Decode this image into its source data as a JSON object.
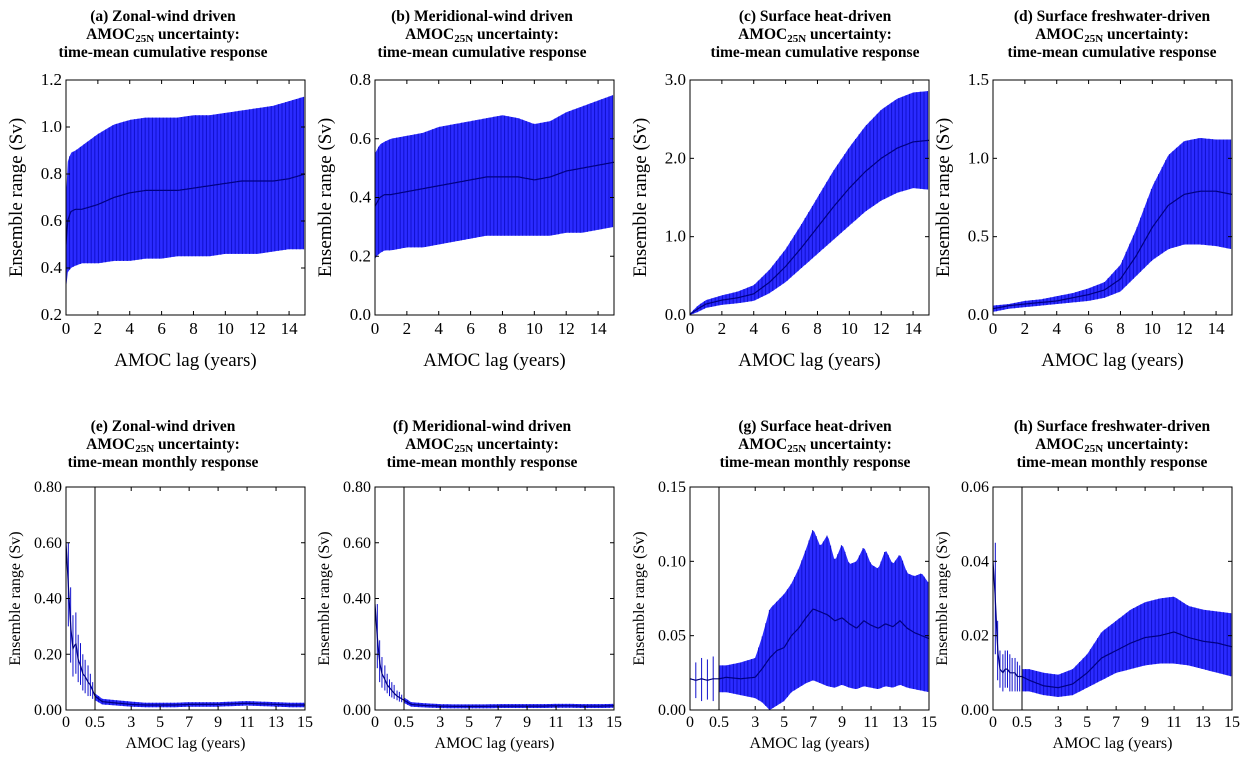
{
  "colors": {
    "band": "#2b2bff",
    "bar": "#1010cc",
    "mean": "#000080",
    "axes": "#000000"
  },
  "chart_data": [
    {
      "type": "area",
      "id": "a",
      "title": [
        "(a)  Zonal-wind driven",
        "AMOC25N uncertainty:",
        "time-mean cumulative response"
      ],
      "xlabel": "AMOC lag (years)",
      "ylabel": "Ensemble range (Sv)",
      "xlim": [
        0,
        15
      ],
      "ylim": [
        0.2,
        1.2
      ],
      "xticks": [
        0,
        2,
        4,
        6,
        8,
        10,
        12,
        14
      ],
      "xticklabels": [
        "0",
        "2",
        "4",
        "6",
        "8",
        "10",
        "12",
        "14"
      ],
      "yticks": [
        0.2,
        0.4,
        0.6,
        0.8,
        1.0,
        1.2
      ],
      "yticklabels": [
        "0.2",
        "0.4",
        "0.6",
        "0.8",
        "1.0",
        "1.2"
      ],
      "x": [
        0,
        0.1,
        0.3,
        0.6,
        1,
        2,
        3,
        4,
        5,
        6,
        7,
        8,
        9,
        10,
        11,
        12,
        13,
        14,
        15
      ],
      "mean": [
        0.5,
        0.6,
        0.64,
        0.65,
        0.65,
        0.67,
        0.7,
        0.72,
        0.73,
        0.73,
        0.73,
        0.74,
        0.75,
        0.76,
        0.77,
        0.77,
        0.77,
        0.78,
        0.8
      ],
      "upper": [
        0.7,
        0.85,
        0.89,
        0.9,
        0.92,
        0.97,
        1.01,
        1.03,
        1.04,
        1.04,
        1.04,
        1.05,
        1.05,
        1.06,
        1.07,
        1.08,
        1.09,
        1.11,
        1.13
      ],
      "lower": [
        0.31,
        0.38,
        0.4,
        0.41,
        0.42,
        0.42,
        0.43,
        0.43,
        0.44,
        0.44,
        0.45,
        0.45,
        0.45,
        0.46,
        0.46,
        0.46,
        0.47,
        0.48,
        0.48
      ]
    },
    {
      "type": "area",
      "id": "b",
      "title": [
        "(b)  Meridional-wind driven",
        "AMOC25N uncertainty:",
        "time-mean cumulative response"
      ],
      "xlabel": "AMOC lag (years)",
      "ylabel": "Ensemble range (Sv)",
      "xlim": [
        0,
        15
      ],
      "ylim": [
        0.0,
        0.8
      ],
      "xticks": [
        0,
        2,
        4,
        6,
        8,
        10,
        12,
        14
      ],
      "xticklabels": [
        "0",
        "2",
        "4",
        "6",
        "8",
        "10",
        "12",
        "14"
      ],
      "yticks": [
        0.0,
        0.2,
        0.4,
        0.6,
        0.8
      ],
      "yticklabels": [
        "0.0",
        "0.2",
        "0.4",
        "0.6",
        "0.8"
      ],
      "x": [
        0,
        0.1,
        0.3,
        0.6,
        1,
        2,
        3,
        4,
        5,
        6,
        7,
        8,
        9,
        10,
        11,
        12,
        13,
        14,
        15
      ],
      "mean": [
        0.37,
        0.38,
        0.4,
        0.41,
        0.41,
        0.42,
        0.43,
        0.44,
        0.45,
        0.46,
        0.47,
        0.47,
        0.47,
        0.46,
        0.47,
        0.49,
        0.5,
        0.51,
        0.52
      ],
      "upper": [
        0.55,
        0.56,
        0.58,
        0.59,
        0.6,
        0.61,
        0.62,
        0.64,
        0.65,
        0.66,
        0.67,
        0.68,
        0.67,
        0.65,
        0.66,
        0.69,
        0.71,
        0.73,
        0.75
      ],
      "lower": [
        0.19,
        0.2,
        0.21,
        0.22,
        0.22,
        0.23,
        0.23,
        0.24,
        0.25,
        0.26,
        0.27,
        0.27,
        0.27,
        0.27,
        0.27,
        0.28,
        0.28,
        0.29,
        0.3
      ]
    },
    {
      "type": "area",
      "id": "c",
      "title": [
        "(c)  Surface heat-driven",
        "AMOC25N uncertainty:",
        "time-mean cumulative response"
      ],
      "xlabel": "AMOC lag (years)",
      "ylabel": "Ensemble range (Sv)",
      "xlim": [
        0,
        15
      ],
      "ylim": [
        0.0,
        3.0
      ],
      "xticks": [
        0,
        2,
        4,
        6,
        8,
        10,
        12,
        14
      ],
      "xticklabels": [
        "0",
        "2",
        "4",
        "6",
        "8",
        "10",
        "12",
        "14"
      ],
      "yticks": [
        0.0,
        1.0,
        2.0,
        3.0
      ],
      "yticklabels": [
        "0.0",
        "1.0",
        "2.0",
        "3.0"
      ],
      "x": [
        0,
        0.5,
        1,
        2,
        3,
        4,
        5,
        6,
        7,
        8,
        9,
        10,
        11,
        12,
        13,
        14,
        15
      ],
      "mean": [
        0.01,
        0.08,
        0.14,
        0.19,
        0.22,
        0.27,
        0.42,
        0.62,
        0.86,
        1.12,
        1.38,
        1.62,
        1.83,
        2.0,
        2.13,
        2.21,
        2.23
      ],
      "upper": [
        0.02,
        0.12,
        0.19,
        0.25,
        0.3,
        0.38,
        0.58,
        0.84,
        1.16,
        1.5,
        1.84,
        2.14,
        2.41,
        2.62,
        2.76,
        2.84,
        2.86
      ],
      "lower": [
        0.0,
        0.04,
        0.09,
        0.13,
        0.15,
        0.18,
        0.28,
        0.42,
        0.6,
        0.78,
        0.96,
        1.14,
        1.32,
        1.46,
        1.56,
        1.62,
        1.6
      ]
    },
    {
      "type": "area",
      "id": "d",
      "title": [
        "(d)  Surface freshwater-driven",
        "AMOC25N uncertainty:",
        "time-mean cumulative response"
      ],
      "xlabel": "AMOC lag (years)",
      "ylabel": "Ensemble range (Sv)",
      "xlim": [
        0,
        15
      ],
      "ylim": [
        0.0,
        1.5
      ],
      "xticks": [
        0,
        2,
        4,
        6,
        8,
        10,
        12,
        14
      ],
      "xticklabels": [
        "0",
        "2",
        "4",
        "6",
        "8",
        "10",
        "12",
        "14"
      ],
      "yticks": [
        0.0,
        0.5,
        1.0,
        1.5
      ],
      "yticklabels": [
        "0.0",
        "0.5",
        "1.0",
        "1.5"
      ],
      "x": [
        0,
        1,
        2,
        3,
        4,
        5,
        6,
        7,
        8,
        9,
        10,
        11,
        12,
        13,
        14,
        15
      ],
      "mean": [
        0.04,
        0.06,
        0.07,
        0.08,
        0.09,
        0.11,
        0.13,
        0.16,
        0.23,
        0.38,
        0.56,
        0.7,
        0.77,
        0.79,
        0.79,
        0.77
      ],
      "upper": [
        0.06,
        0.07,
        0.09,
        0.1,
        0.12,
        0.14,
        0.17,
        0.21,
        0.32,
        0.55,
        0.82,
        1.02,
        1.11,
        1.13,
        1.12,
        1.12
      ],
      "lower": [
        0.02,
        0.04,
        0.05,
        0.06,
        0.07,
        0.08,
        0.09,
        0.11,
        0.15,
        0.25,
        0.35,
        0.42,
        0.45,
        0.45,
        0.44,
        0.42
      ]
    },
    {
      "type": "area",
      "id": "e",
      "title": [
        "(e)  Zonal-wind driven",
        "AMOC25N uncertainty:",
        "time-mean monthly response"
      ],
      "xlabel": "AMOC lag (years)",
      "ylabel": "Ensemble range (Sv)",
      "xlim": [
        0,
        15
      ],
      "ylim": [
        0.0,
        0.8
      ],
      "split_x": 0.5,
      "xticks": [
        0,
        0.5,
        3,
        5,
        7,
        9,
        11,
        13,
        15
      ],
      "xticklabels": [
        "0",
        "0.5",
        "3",
        "5",
        "7",
        "9",
        "11",
        "13",
        "15"
      ],
      "yticks": [
        0.0,
        0.2,
        0.4,
        0.6,
        0.8
      ],
      "yticklabels": [
        "0.00",
        "0.20",
        "0.40",
        "0.60",
        "0.80"
      ],
      "x": [
        0,
        0.04,
        0.08,
        0.12,
        0.17,
        0.21,
        0.25,
        0.29,
        0.33,
        0.38,
        0.42,
        0.46,
        0.5,
        1,
        2,
        3,
        4,
        5,
        6,
        7,
        8,
        9,
        10,
        11,
        12,
        13,
        14,
        15
      ],
      "mean": [
        0.6,
        0.45,
        0.3,
        0.22,
        0.24,
        0.18,
        0.16,
        0.13,
        0.12,
        0.1,
        0.09,
        0.07,
        0.05,
        0.03,
        0.025,
        0.02,
        0.018,
        0.018,
        0.018,
        0.02,
        0.02,
        0.02,
        0.022,
        0.024,
        0.022,
        0.02,
        0.018,
        0.018
      ],
      "upper": [
        0.78,
        0.6,
        0.44,
        0.34,
        0.35,
        0.27,
        0.24,
        0.2,
        0.18,
        0.16,
        0.13,
        0.1,
        0.06,
        0.04,
        0.035,
        0.03,
        0.026,
        0.026,
        0.026,
        0.028,
        0.028,
        0.028,
        0.03,
        0.032,
        0.03,
        0.028,
        0.026,
        0.026
      ],
      "lower": [
        0.42,
        0.3,
        0.17,
        0.12,
        0.13,
        0.1,
        0.09,
        0.07,
        0.06,
        0.05,
        0.05,
        0.04,
        0.035,
        0.02,
        0.016,
        0.012,
        0.01,
        0.01,
        0.01,
        0.012,
        0.012,
        0.012,
        0.014,
        0.016,
        0.014,
        0.012,
        0.01,
        0.01
      ]
    },
    {
      "type": "area",
      "id": "f",
      "title": [
        "(f)  Meridional-wind driven",
        "AMOC25N uncertainty:",
        "time-mean monthly response"
      ],
      "xlabel": "AMOC lag (years)",
      "ylabel": "Ensemble range (Sv)",
      "xlim": [
        0,
        15
      ],
      "ylim": [
        0.0,
        0.8
      ],
      "split_x": 0.5,
      "xticks": [
        0,
        0.5,
        3,
        5,
        7,
        9,
        11,
        13,
        15
      ],
      "xticklabels": [
        "0",
        "0.5",
        "3",
        "5",
        "7",
        "9",
        "11",
        "13",
        "15"
      ],
      "yticks": [
        0.0,
        0.2,
        0.4,
        0.6,
        0.8
      ],
      "yticklabels": [
        "0.00",
        "0.20",
        "0.40",
        "0.60",
        "0.80"
      ],
      "x": [
        0,
        0.04,
        0.08,
        0.12,
        0.17,
        0.21,
        0.25,
        0.29,
        0.33,
        0.38,
        0.42,
        0.46,
        0.5,
        1,
        2,
        3,
        4,
        5,
        6,
        7,
        8,
        9,
        10,
        11,
        12,
        13,
        14,
        15
      ],
      "mean": [
        0.38,
        0.26,
        0.17,
        0.13,
        0.11,
        0.09,
        0.08,
        0.07,
        0.06,
        0.05,
        0.045,
        0.04,
        0.035,
        0.02,
        0.016,
        0.014,
        0.013,
        0.013,
        0.013,
        0.014,
        0.014,
        0.014,
        0.014,
        0.015,
        0.015,
        0.014,
        0.014,
        0.015
      ],
      "upper": [
        0.56,
        0.38,
        0.25,
        0.19,
        0.16,
        0.13,
        0.11,
        0.1,
        0.09,
        0.07,
        0.065,
        0.055,
        0.045,
        0.028,
        0.024,
        0.021,
        0.02,
        0.02,
        0.02,
        0.021,
        0.021,
        0.021,
        0.021,
        0.022,
        0.022,
        0.021,
        0.021,
        0.022
      ],
      "lower": [
        0.22,
        0.15,
        0.1,
        0.08,
        0.07,
        0.06,
        0.05,
        0.045,
        0.04,
        0.035,
        0.03,
        0.028,
        0.025,
        0.012,
        0.009,
        0.007,
        0.006,
        0.006,
        0.006,
        0.007,
        0.007,
        0.007,
        0.007,
        0.008,
        0.008,
        0.007,
        0.007,
        0.008
      ]
    },
    {
      "type": "area",
      "id": "g",
      "title": [
        "(g)  Surface heat-driven",
        "AMOC25N uncertainty:",
        "time-mean monthly response"
      ],
      "xlabel": "AMOC lag (years)",
      "ylabel": "Ensemble range (Sv)",
      "xlim": [
        0,
        15
      ],
      "ylim": [
        0.0,
        0.15
      ],
      "split_x": 0.5,
      "xticks": [
        0,
        0.5,
        3,
        5,
        7,
        9,
        11,
        13,
        15
      ],
      "xticklabels": [
        "0",
        "0.5",
        "3",
        "5",
        "7",
        "9",
        "11",
        "13",
        "15"
      ],
      "yticks": [
        0.0,
        0.05,
        0.1,
        0.15
      ],
      "yticklabels": [
        "0.00",
        "0.05",
        "0.10",
        "0.15"
      ],
      "x": [
        0,
        0.1,
        0.2,
        0.3,
        0.4,
        0.5,
        1,
        2,
        3,
        3.5,
        4,
        4.5,
        5,
        5.5,
        6,
        6.5,
        7,
        7.5,
        8,
        8.5,
        9,
        9.5,
        10,
        10.5,
        11,
        11.5,
        12,
        12.5,
        13,
        13.5,
        14,
        14.5,
        15
      ],
      "mean": [
        0.021,
        0.02,
        0.021,
        0.02,
        0.021,
        0.021,
        0.022,
        0.021,
        0.022,
        0.028,
        0.035,
        0.04,
        0.042,
        0.05,
        0.055,
        0.062,
        0.068,
        0.066,
        0.064,
        0.06,
        0.062,
        0.058,
        0.055,
        0.06,
        0.057,
        0.055,
        0.058,
        0.056,
        0.06,
        0.055,
        0.052,
        0.05,
        0.048
      ],
      "upper": [
        0.04,
        0.032,
        0.035,
        0.034,
        0.036,
        0.03,
        0.03,
        0.032,
        0.035,
        0.05,
        0.068,
        0.073,
        0.078,
        0.085,
        0.095,
        0.108,
        0.122,
        0.11,
        0.118,
        0.1,
        0.112,
        0.098,
        0.1,
        0.11,
        0.098,
        0.095,
        0.108,
        0.098,
        0.105,
        0.092,
        0.09,
        0.092,
        0.085
      ],
      "lower": [
        0.005,
        0.008,
        0.006,
        0.007,
        0.006,
        0.012,
        0.012,
        0.01,
        0.008,
        0.005,
        0.0,
        0.003,
        0.006,
        0.012,
        0.015,
        0.018,
        0.02,
        0.018,
        0.016,
        0.015,
        0.017,
        0.015,
        0.014,
        0.016,
        0.015,
        0.014,
        0.016,
        0.015,
        0.017,
        0.015,
        0.014,
        0.013,
        0.012
      ]
    },
    {
      "type": "area",
      "id": "h",
      "title": [
        "(h)  Surface freshwater-driven",
        "AMOC25N uncertainty:",
        "time-mean monthly response"
      ],
      "xlabel": "AMOC lag (years)",
      "ylabel": "Ensemble range (Sv)",
      "xlim": [
        0,
        15
      ],
      "ylim": [
        0.0,
        0.06
      ],
      "split_x": 0.5,
      "xticks": [
        0,
        0.5,
        3,
        5,
        7,
        9,
        11,
        13,
        15
      ],
      "xticklabels": [
        "0",
        "0.5",
        "3",
        "5",
        "7",
        "9",
        "11",
        "13",
        "15"
      ],
      "yticks": [
        0.0,
        0.02,
        0.04,
        0.06
      ],
      "yticklabels": [
        "0.00",
        "0.02",
        "0.04",
        "0.06"
      ],
      "x": [
        0,
        0.04,
        0.08,
        0.12,
        0.17,
        0.21,
        0.25,
        0.29,
        0.33,
        0.38,
        0.42,
        0.46,
        0.5,
        1,
        2,
        3,
        4,
        5,
        6,
        7,
        8,
        9,
        10,
        11,
        12,
        13,
        14,
        15
      ],
      "mean": [
        0.04,
        0.03,
        0.016,
        0.011,
        0.01,
        0.011,
        0.011,
        0.01,
        0.01,
        0.01,
        0.009,
        0.009,
        0.009,
        0.008,
        0.0065,
        0.006,
        0.007,
        0.01,
        0.014,
        0.016,
        0.018,
        0.0195,
        0.02,
        0.021,
        0.0195,
        0.0185,
        0.018,
        0.017
      ],
      "upper": [
        0.058,
        0.045,
        0.024,
        0.016,
        0.015,
        0.016,
        0.016,
        0.015,
        0.014,
        0.014,
        0.013,
        0.012,
        0.011,
        0.011,
        0.01,
        0.0095,
        0.011,
        0.015,
        0.021,
        0.024,
        0.027,
        0.029,
        0.03,
        0.0305,
        0.028,
        0.027,
        0.0265,
        0.026
      ],
      "lower": [
        0.022,
        0.015,
        0.008,
        0.006,
        0.005,
        0.006,
        0.006,
        0.005,
        0.005,
        0.005,
        0.005,
        0.005,
        0.005,
        0.005,
        0.004,
        0.0035,
        0.004,
        0.006,
        0.008,
        0.01,
        0.011,
        0.012,
        0.0125,
        0.0125,
        0.012,
        0.011,
        0.01,
        0.009
      ]
    }
  ]
}
